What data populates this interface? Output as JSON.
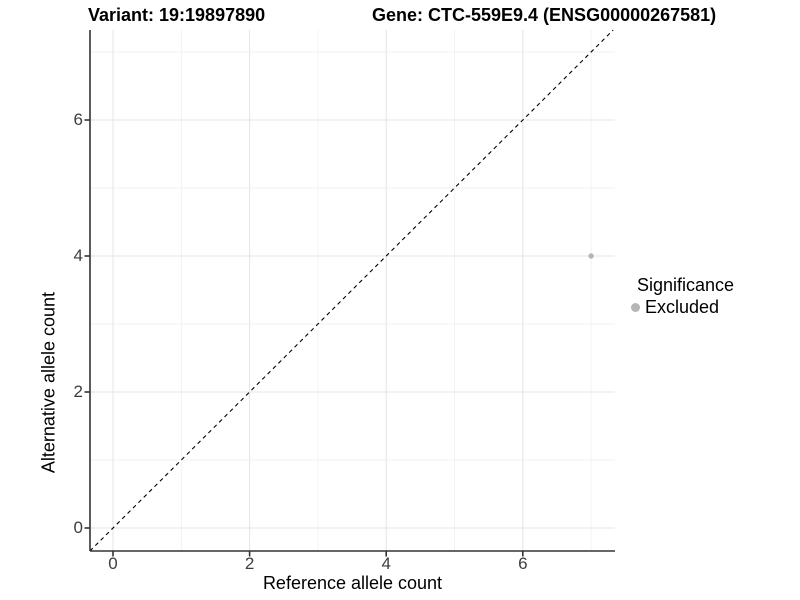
{
  "page": {
    "background": "#ffffff"
  },
  "chart_data": {
    "type": "scatter",
    "title_left": "Variant: 19:19897890",
    "title_right": "Gene: CTC-559E9.4 (ENSG00000267581)",
    "xlabel": "Reference allele count",
    "ylabel": "Alternative allele count",
    "xlim": [
      -0.35,
      7.35
    ],
    "ylim": [
      -0.35,
      7.35
    ],
    "x_ticks": [
      0,
      2,
      4,
      6
    ],
    "y_ticks": [
      0,
      2,
      4,
      6
    ],
    "x_minor_ticks": [
      1,
      3,
      5,
      7
    ],
    "y_minor_ticks": [
      1,
      3,
      5,
      7
    ],
    "grid": "major and minor gridlines, white background",
    "points": [
      {
        "x": 7,
        "y": 4,
        "series": "Excluded"
      }
    ],
    "reference_line": {
      "type": "identity",
      "equation": "y = x",
      "style": "dashed"
    },
    "legend": {
      "title": "Significance",
      "position": "right",
      "entries": [
        {
          "label": "Excluded",
          "color": "#b5b5b5"
        }
      ]
    }
  },
  "colors": {
    "background": "#ffffff",
    "point": "#b5b5b5",
    "legend_dot": "#b3b3b3",
    "grid_major": "#e6e6e6",
    "grid_minor": "#f1f1f1",
    "axis_line": "#333333",
    "tick_mark": "#333333",
    "tick_label": "#3d3d3d",
    "dashed_line": "#000000",
    "title_text": "#000000"
  }
}
